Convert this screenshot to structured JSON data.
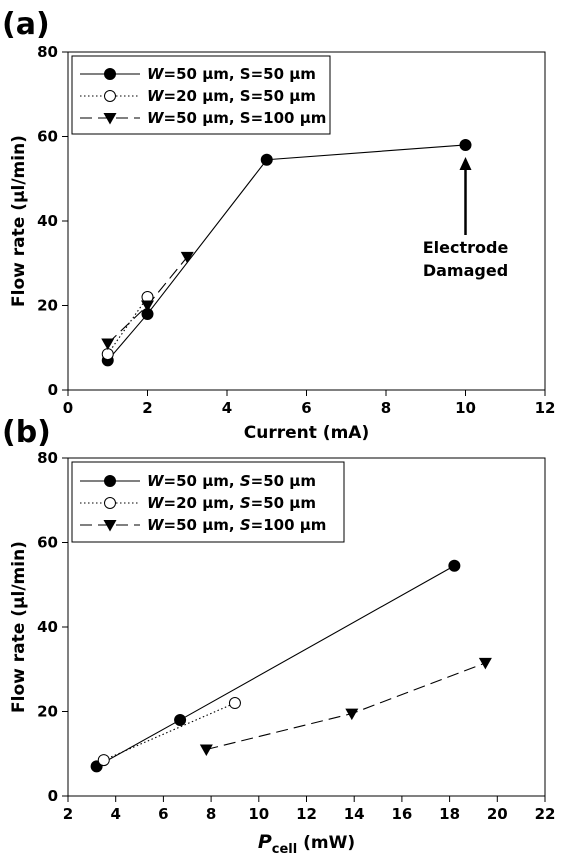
{
  "chart_data": [
    {
      "panel_label": "(a)",
      "type": "line",
      "xlabel": "Current (mA)",
      "ylabel": "Flow rate (µl/min)",
      "xlim": [
        0,
        12
      ],
      "ylim": [
        0,
        80
      ],
      "xticks": [
        0,
        2,
        4,
        6,
        8,
        10,
        12
      ],
      "yticks": [
        0,
        20,
        40,
        60,
        80
      ],
      "legend_position": "top-left",
      "series": [
        {
          "name": "W=50 µm, S=50 µm",
          "marker": "filled-circle",
          "line": "solid",
          "x": [
            1,
            2,
            5,
            10
          ],
          "y": [
            7,
            18,
            54.5,
            58
          ],
          "legend_parts": [
            {
              "t": "W",
              "i": true
            },
            {
              "t": "=50 µm, S=50 µm",
              "i": false
            }
          ]
        },
        {
          "name": "W=20 µm, S=50 µm",
          "marker": "open-circle",
          "line": "dotted",
          "x": [
            1,
            2
          ],
          "y": [
            8.5,
            22
          ],
          "legend_parts": [
            {
              "t": "W",
              "i": true
            },
            {
              "t": "=20 µm, S=50 µm",
              "i": false
            }
          ]
        },
        {
          "name": "W=50 µm, S=100 µm",
          "marker": "filled-triangle-down",
          "line": "dashed",
          "x": [
            1,
            2,
            3
          ],
          "y": [
            11,
            20,
            31.5
          ],
          "legend_parts": [
            {
              "t": "W",
              "i": true
            },
            {
              "t": "=50 µm, S=100 µm",
              "i": false
            }
          ]
        }
      ],
      "annotation": {
        "lines": [
          "Electrode",
          "Damaged"
        ],
        "arrow_to": [
          10,
          58
        ]
      }
    },
    {
      "panel_label": "(b)",
      "type": "line",
      "xlabel_main": "P",
      "xlabel_sub": "cell",
      "xlabel_unit": " (mW)",
      "ylabel": "Flow rate (µl/min)",
      "xlim": [
        2,
        22
      ],
      "ylim": [
        0,
        80
      ],
      "xticks": [
        2,
        4,
        6,
        8,
        10,
        12,
        14,
        16,
        18,
        20,
        22
      ],
      "yticks": [
        0,
        20,
        40,
        60,
        80
      ],
      "legend_position": "top-left",
      "series": [
        {
          "name": "W=50 µm, S=50 µm",
          "marker": "filled-circle",
          "line": "solid",
          "x": [
            3.2,
            6.7,
            18.2
          ],
          "y": [
            7,
            18,
            54.5
          ],
          "legend_parts": [
            {
              "t": "W",
              "i": true
            },
            {
              "t": "=50 µm, ",
              "i": false
            },
            {
              "t": "S",
              "i": true
            },
            {
              "t": "=50 µm",
              "i": false
            }
          ]
        },
        {
          "name": "W=20 µm, S=50 µm",
          "marker": "open-circle",
          "line": "dotted",
          "x": [
            3.5,
            9.0
          ],
          "y": [
            8.5,
            22
          ],
          "legend_parts": [
            {
              "t": "W",
              "i": true
            },
            {
              "t": "=20 µm, ",
              "i": false
            },
            {
              "t": "S",
              "i": true
            },
            {
              "t": "=50 µm",
              "i": false
            }
          ]
        },
        {
          "name": "W=50 µm, S=100 µm",
          "marker": "filled-triangle-down",
          "line": "dashed",
          "x": [
            7.8,
            13.9,
            19.5
          ],
          "y": [
            11,
            19.5,
            31.5
          ],
          "legend_parts": [
            {
              "t": "W",
              "i": true
            },
            {
              "t": "=50 µm, ",
              "i": false
            },
            {
              "t": "S",
              "i": true
            },
            {
              "t": "=100 µm",
              "i": false
            }
          ]
        }
      ]
    }
  ]
}
